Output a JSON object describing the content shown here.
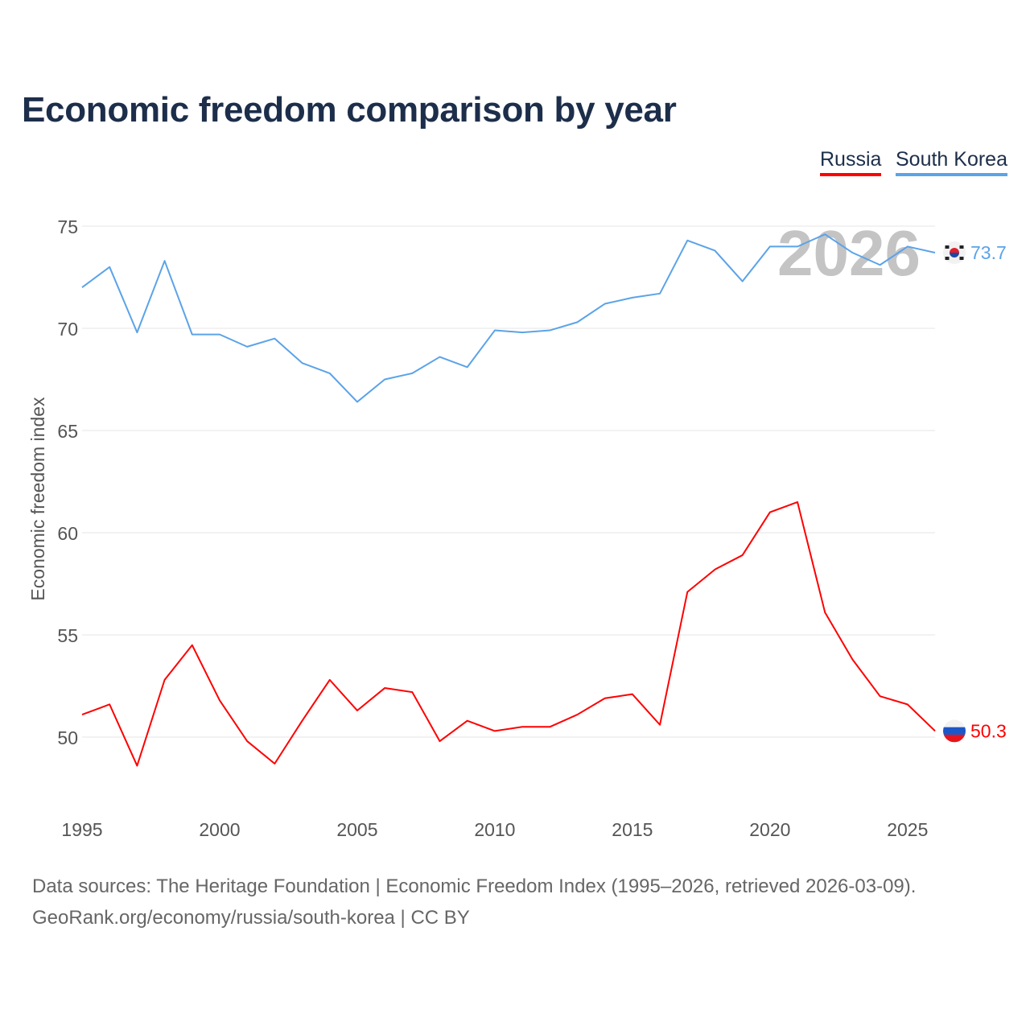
{
  "chart_data": {
    "type": "line",
    "title": "Economic freedom comparison by year",
    "xlabel": "",
    "ylabel": "Economic freedom index",
    "xlim": [
      1995,
      2026
    ],
    "ylim": [
      45.5,
      77
    ],
    "yticks": [
      50,
      55,
      60,
      65,
      70,
      75
    ],
    "xticks": [
      1995,
      2000,
      2005,
      2010,
      2015,
      2020,
      2025
    ],
    "grid": true,
    "legend_position": "top-right",
    "watermark_year": "2026",
    "x": [
      1995,
      1996,
      1997,
      1998,
      1999,
      2000,
      2001,
      2002,
      2003,
      2004,
      2005,
      2006,
      2007,
      2008,
      2009,
      2010,
      2011,
      2012,
      2013,
      2014,
      2015,
      2016,
      2017,
      2018,
      2019,
      2020,
      2021,
      2022,
      2023,
      2024,
      2025,
      2026
    ],
    "series": [
      {
        "name": "Russia",
        "color": "#ff0000",
        "end_label": "50.3",
        "flag": "russia-flag",
        "values": [
          51.1,
          51.6,
          48.6,
          52.8,
          54.5,
          51.8,
          49.8,
          48.7,
          50.8,
          52.8,
          51.3,
          52.4,
          52.2,
          49.8,
          50.8,
          50.3,
          50.5,
          50.5,
          51.1,
          51.9,
          52.1,
          50.6,
          57.1,
          58.2,
          58.9,
          61.0,
          61.5,
          56.1,
          53.8,
          52.0,
          51.6,
          50.3
        ]
      },
      {
        "name": "South Korea",
        "color": "#5ba3e8",
        "end_label": "73.7",
        "flag": "south-korea-flag",
        "values": [
          72.0,
          73.0,
          69.8,
          73.3,
          69.7,
          69.7,
          69.1,
          69.5,
          68.3,
          67.8,
          66.4,
          67.5,
          67.8,
          68.6,
          68.1,
          69.9,
          69.8,
          69.9,
          70.3,
          71.2,
          71.5,
          71.7,
          74.3,
          73.8,
          72.3,
          74.0,
          74.0,
          74.6,
          73.7,
          73.1,
          74.0,
          73.7
        ]
      }
    ]
  },
  "footer": {
    "line1": "Data sources: The Heritage Foundation | Economic Freedom Index (1995–2026, retrieved 2026-03-09).",
    "line2": "GeoRank.org/economy/russia/south-korea | CC BY"
  }
}
